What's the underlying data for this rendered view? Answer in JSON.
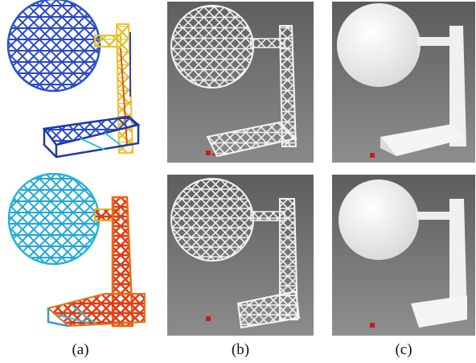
{
  "captions": [
    "(a)",
    "(b)",
    "(c)"
  ],
  "panels": {
    "a": {
      "description_icon": "colored-stress-truss-model-icon"
    },
    "b": {
      "description_icon": "white-printed-lattice-photo-icon"
    },
    "c": {
      "description_icon": "white-printed-solid-photo-icon"
    }
  },
  "colors": {
    "photo_background": "#6f6f6f",
    "printed_white": "#f3f3f3",
    "stress_low": "#2233aa",
    "stress_mid": "#33ccdd",
    "stress_high": "#dd3311",
    "red_figurine": "#cc1a1a"
  }
}
